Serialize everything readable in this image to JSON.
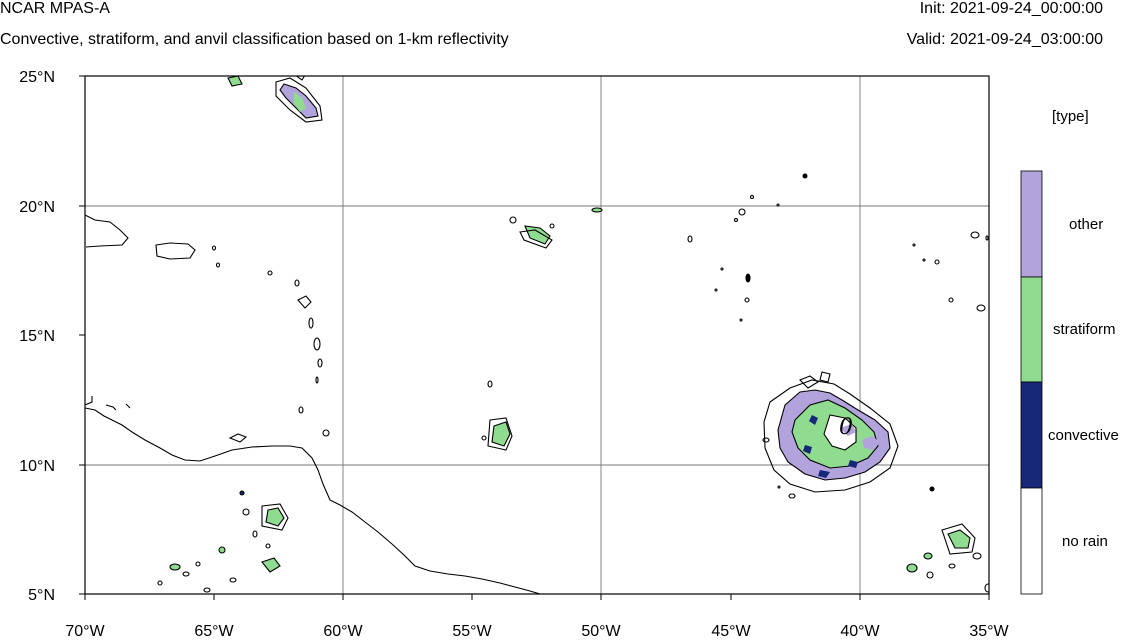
{
  "header": {
    "model": "NCAR MPAS-A",
    "subtitle": "Convective, stratiform, and anvil classification based on 1-km reflectivity",
    "init": "Init: 2021-09-24_00:00:00",
    "valid": "Valid: 2021-09-24_03:00:00"
  },
  "map": {
    "lon_range": [
      -70,
      -35
    ],
    "lat_range": [
      5,
      25
    ],
    "lon_ticks": [
      "70°W",
      "65°W",
      "60°W",
      "55°W",
      "50°W",
      "45°W",
      "40°W",
      "35°W"
    ],
    "lat_ticks": [
      "25°N",
      "20°N",
      "15°N",
      "10°N",
      "5°N"
    ],
    "gridlines": true,
    "cyclone_symbol": "0"
  },
  "legend": {
    "title": "[type]",
    "items": [
      {
        "label": "other",
        "color": "#b3a3dc"
      },
      {
        "label": "stratiform",
        "color": "#8fdb8f"
      },
      {
        "label": "convective",
        "color": "#172878"
      },
      {
        "label": "no rain",
        "color": "#ffffff"
      }
    ]
  }
}
